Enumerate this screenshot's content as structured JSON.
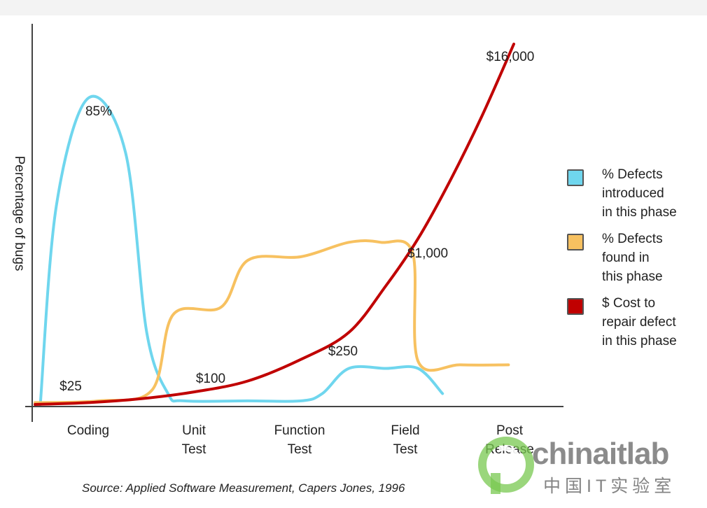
{
  "chart_data": {
    "type": "line",
    "ylabel": "Percentage of bugs",
    "categories": [
      "Coding",
      "Unit\nTest",
      "Function\nTest",
      "Field\nTest",
      "Post\nRelease"
    ],
    "series": [
      {
        "name": "% Defects introduced in this phase",
        "color": "#6fd6ee",
        "points": [
          [
            0.05,
            0
          ],
          [
            0.2,
            55
          ],
          [
            0.5,
            85
          ],
          [
            0.85,
            70
          ],
          [
            1.05,
            20
          ],
          [
            1.25,
            3
          ],
          [
            1.4,
            1
          ],
          [
            2.0,
            1
          ],
          [
            2.5,
            1
          ],
          [
            2.7,
            3
          ],
          [
            2.95,
            10
          ],
          [
            3.3,
            10
          ],
          [
            3.6,
            10
          ],
          [
            3.83,
            3
          ]
        ]
      },
      {
        "name": "% Defects found in this phase",
        "color": "#f7c160",
        "points": [
          [
            0.0,
            0.5
          ],
          [
            0.6,
            1
          ],
          [
            1.1,
            4
          ],
          [
            1.3,
            25
          ],
          [
            1.75,
            27
          ],
          [
            2.0,
            40
          ],
          [
            2.5,
            41
          ],
          [
            2.95,
            45
          ],
          [
            3.25,
            45
          ],
          [
            3.55,
            42
          ],
          [
            3.6,
            12
          ],
          [
            4.0,
            11
          ],
          [
            4.45,
            11
          ]
        ]
      },
      {
        "name": "$ Cost to repair defect in this phase",
        "color": "#c00000",
        "points": [
          [
            0.0,
            0
          ],
          [
            0.5,
            0.5
          ],
          [
            1.0,
            1.6
          ],
          [
            1.5,
            3.5
          ],
          [
            2.0,
            6.5
          ],
          [
            2.5,
            12.5
          ],
          [
            2.95,
            20
          ],
          [
            3.3,
            33
          ],
          [
            3.6,
            46
          ],
          [
            3.9,
            62
          ],
          [
            4.2,
            80
          ],
          [
            4.5,
            100
          ]
        ]
      }
    ],
    "annotations": [
      "$25",
      "$100",
      "$250",
      "$1,000",
      "$16,000",
      "85%"
    ],
    "ylim": [
      0,
      100
    ],
    "grid": false,
    "legend_position": "right"
  },
  "legend": [
    {
      "label": "% Defects\nintroduced\nin this phase",
      "color": "#6fd6ee"
    },
    {
      "label": "% Defects\nfound in\nthis phase",
      "color": "#f7c160"
    },
    {
      "label": "$ Cost to\nrepair defect\nin this phase",
      "color": "#c00000"
    }
  ],
  "source": "Source: Applied Software Measurement, Capers Jones, 1996",
  "watermark": {
    "name": "chinaitlab",
    "sub": "中国IT实验室"
  }
}
